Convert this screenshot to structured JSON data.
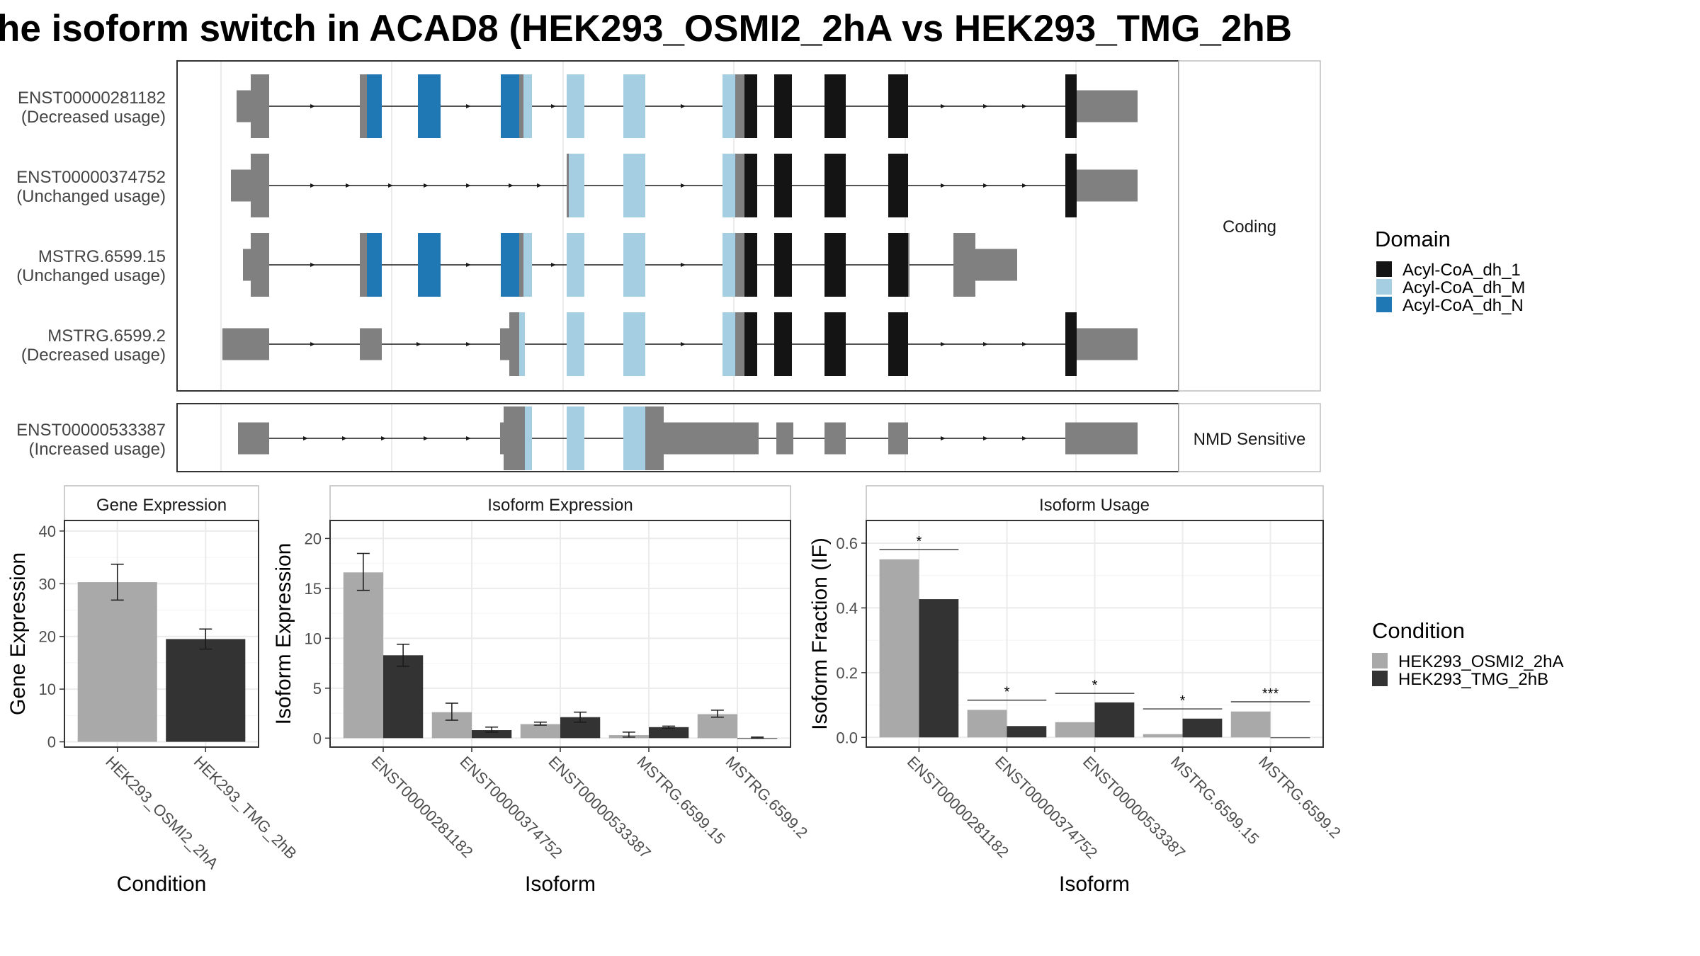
{
  "title": "he isoform switch in ACAD8 (HEK293_OSMI2_2hA vs HEK293_TMG_2hB",
  "colors": {
    "exon_gray": "#808080",
    "Acyl-CoA_dh_1": "#141414",
    "Acyl-CoA_dh_M": "#a6cee3",
    "Acyl-CoA_dh_N": "#1f78b4",
    "cond_A": "#a9a9a9",
    "cond_B": "#333333",
    "grid": "#ebebeb",
    "border": "#333333",
    "strip_border": "#bdbdbd"
  },
  "structure": {
    "groups": [
      {
        "label": "Coding",
        "transcripts": [
          {
            "id": "ENST00000281182",
            "usage": "(Decreased usage)"
          },
          {
            "id": "ENST00000374752",
            "usage": "(Unchanged usage)"
          },
          {
            "id": "MSTRG.6599.15",
            "usage": "(Unchanged usage)"
          },
          {
            "id": "MSTRG.6599.2",
            "usage": "(Decreased usage)"
          }
        ]
      },
      {
        "label": "NMD Sensitive",
        "transcripts": [
          {
            "id": "ENST00000533387",
            "usage": "(Increased usage)"
          }
        ]
      }
    ]
  },
  "domain_legend": {
    "title": "Domain",
    "items": [
      "Acyl-CoA_dh_1",
      "Acyl-CoA_dh_M",
      "Acyl-CoA_dh_N"
    ]
  },
  "condition_legend": {
    "title": "Condition",
    "items": [
      "HEK293_OSMI2_2hA",
      "HEK293_TMG_2hB"
    ]
  },
  "chart_data": [
    {
      "type": "bar",
      "title": "Gene Expression",
      "xlabel": "Condition",
      "ylabel": "Gene Expression",
      "categories": [
        "HEK293_OSMI2_2hA",
        "HEK293_TMG_2hB"
      ],
      "values": [
        30.3,
        19.5
      ],
      "error_low": [
        26.9,
        17.6
      ],
      "error_high": [
        33.7,
        21.4
      ],
      "ylim": [
        -1,
        42
      ],
      "yticks": [
        0,
        10,
        20,
        30,
        40
      ]
    },
    {
      "type": "bar",
      "title": "Isoform Expression",
      "xlabel": "Isoform",
      "ylabel": "Isoform Expression",
      "categories": [
        "ENST00000281182",
        "ENST00000374752",
        "ENST00000533387",
        "MSTRG.6599.15",
        "MSTRG.6599.2"
      ],
      "series": [
        {
          "name": "HEK293_OSMI2_2hA",
          "values": [
            16.6,
            2.6,
            1.4,
            0.3,
            2.4
          ],
          "error_low": [
            14.8,
            1.8,
            1.3,
            0.1,
            2.1
          ],
          "error_high": [
            18.5,
            3.5,
            1.6,
            0.6,
            2.8
          ]
        },
        {
          "name": "HEK293_TMG_2hB",
          "values": [
            8.3,
            0.8,
            2.1,
            1.1,
            0.0
          ],
          "error_low": [
            7.2,
            0.6,
            1.6,
            1.0,
            0.0
          ],
          "error_high": [
            9.4,
            1.1,
            2.6,
            1.2,
            0.1
          ]
        }
      ],
      "ylim": [
        -0.9,
        21.8
      ],
      "yticks": [
        0,
        5,
        10,
        15,
        20
      ]
    },
    {
      "type": "bar",
      "title": "Isoform Usage",
      "xlabel": "Isoform",
      "ylabel": "Isoform Fraction (IF)",
      "categories": [
        "ENST00000281182",
        "ENST00000374752",
        "ENST00000533387",
        "MSTRG.6599.15",
        "MSTRG.6599.2"
      ],
      "series": [
        {
          "name": "HEK293_OSMI2_2hA",
          "values": [
            0.55,
            0.085,
            0.047,
            0.01,
            0.08
          ]
        },
        {
          "name": "HEK293_TMG_2hB",
          "values": [
            0.427,
            0.035,
            0.108,
            0.058,
            0.0
          ]
        }
      ],
      "significance": [
        "*",
        "*",
        "*",
        "*",
        "***"
      ],
      "significance_y": [
        0.58,
        0.115,
        0.136,
        0.088,
        0.11
      ],
      "ylim": [
        -0.03,
        0.67
      ],
      "yticks": [
        0.0,
        0.2,
        0.4,
        0.6
      ],
      "ytick_labels": [
        "0.0",
        "0.2",
        "0.4",
        "0.6"
      ]
    }
  ]
}
